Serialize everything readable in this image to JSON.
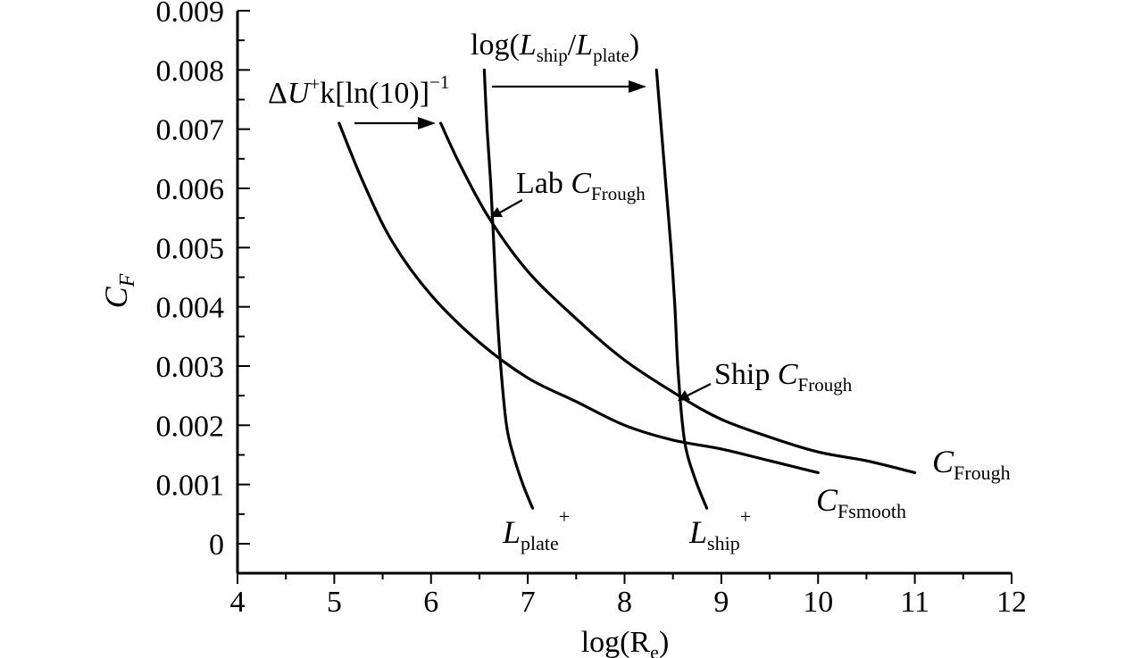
{
  "chart_data": {
    "type": "line",
    "xlabel": {
      "base": "log(R",
      "sub": "e",
      "tail": ")"
    },
    "ylabel": {
      "base": "C",
      "sub": "F"
    },
    "xlim": [
      4,
      12
    ],
    "ylim": [
      0,
      0.009
    ],
    "xticks": [
      {
        "v": 4,
        "label": "4"
      },
      {
        "v": 5,
        "label": "5"
      },
      {
        "v": 6,
        "label": "6"
      },
      {
        "v": 7,
        "label": "7"
      },
      {
        "v": 8,
        "label": "8"
      },
      {
        "v": 9,
        "label": "9"
      },
      {
        "v": 10,
        "label": "10"
      },
      {
        "v": 11,
        "label": "11"
      },
      {
        "v": 12,
        "label": "12"
      }
    ],
    "yticks": [
      {
        "v": 0,
        "label": "0"
      },
      {
        "v": 0.001,
        "label": "0.001"
      },
      {
        "v": 0.002,
        "label": "0.002"
      },
      {
        "v": 0.003,
        "label": "0.003"
      },
      {
        "v": 0.004,
        "label": "0.004"
      },
      {
        "v": 0.005,
        "label": "0.005"
      },
      {
        "v": 0.006,
        "label": "0.006"
      },
      {
        "v": 0.007,
        "label": "0.007"
      },
      {
        "v": 0.008,
        "label": "0.008"
      },
      {
        "v": 0.009,
        "label": "0.009"
      }
    ],
    "series": [
      {
        "id": "cf-smooth",
        "label_base": "C",
        "label_sub": "Fsmooth",
        "points": [
          [
            5.05,
            0.0071
          ],
          [
            5.3,
            0.0061
          ],
          [
            5.6,
            0.0051
          ],
          [
            6.0,
            0.0042
          ],
          [
            6.5,
            0.0034
          ],
          [
            7.0,
            0.0028
          ],
          [
            7.5,
            0.0024
          ],
          [
            8.0,
            0.002
          ],
          [
            8.5,
            0.00175
          ],
          [
            9.0,
            0.0016
          ],
          [
            9.5,
            0.0014
          ],
          [
            10.0,
            0.0012
          ]
        ]
      },
      {
        "id": "cf-rough",
        "label_base": "C",
        "label_sub": "Frough",
        "points": [
          [
            6.1,
            0.0071
          ],
          [
            6.3,
            0.0064
          ],
          [
            6.6,
            0.0055
          ],
          [
            7.0,
            0.0046
          ],
          [
            7.5,
            0.0038
          ],
          [
            8.0,
            0.0031
          ],
          [
            8.56,
            0.0025
          ],
          [
            9.0,
            0.0021
          ],
          [
            9.5,
            0.0018
          ],
          [
            10.0,
            0.00155
          ],
          [
            10.5,
            0.0014
          ],
          [
            11.0,
            0.0012
          ]
        ]
      },
      {
        "id": "l-plate",
        "label_base": "L",
        "label_sub": "plate",
        "label_sup": "+",
        "points": [
          [
            6.55,
            0.008
          ],
          [
            6.58,
            0.007
          ],
          [
            6.62,
            0.006
          ],
          [
            6.65,
            0.005
          ],
          [
            6.68,
            0.004
          ],
          [
            6.72,
            0.003
          ],
          [
            6.78,
            0.002
          ],
          [
            6.85,
            0.0015
          ],
          [
            6.95,
            0.001
          ],
          [
            7.05,
            0.0006
          ]
        ]
      },
      {
        "id": "l-ship",
        "label_base": "L",
        "label_sub": "ship",
        "label_sup": "+",
        "points": [
          [
            8.33,
            0.008
          ],
          [
            8.38,
            0.007
          ],
          [
            8.43,
            0.006
          ],
          [
            8.48,
            0.005
          ],
          [
            8.52,
            0.004
          ],
          [
            8.55,
            0.003
          ],
          [
            8.6,
            0.002
          ],
          [
            8.65,
            0.0015
          ],
          [
            8.75,
            0.001
          ],
          [
            8.85,
            0.0006
          ]
        ]
      }
    ],
    "annotations": {
      "lab": {
        "text": "Lab ",
        "base": "C",
        "sub": "Frough",
        "point": [
          6.65,
          0.0055
        ]
      },
      "ship": {
        "text": "Ship ",
        "base": "C",
        "sub": "Frough",
        "point": [
          8.55,
          0.00245
        ]
      },
      "shift_top": {
        "pre": "log(",
        "l1": "L",
        "s1": "ship",
        "mid": "/",
        "l2": "L",
        "s2": "plate",
        "post": ")"
      },
      "shift_left": {
        "delta": "Δ",
        "U": "U",
        "plus": "+",
        "k": "k[ln(10)]",
        "exp": "−1"
      }
    }
  }
}
